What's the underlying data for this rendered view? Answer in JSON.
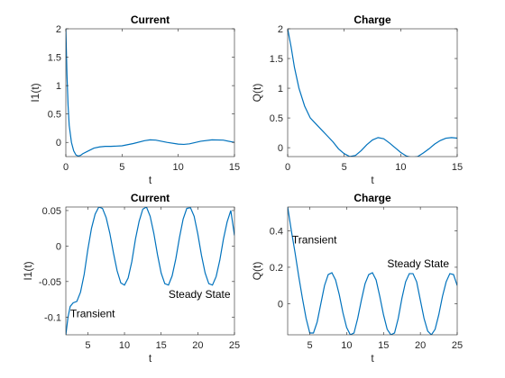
{
  "chart_data": [
    {
      "type": "line",
      "title": "Current",
      "xlabel": "t",
      "ylabel": "I1(t)",
      "xlim": [
        0,
        15
      ],
      "ylim": [
        -0.25,
        2
      ],
      "xticks": [
        0,
        5,
        10,
        15
      ],
      "xtick_labels": [
        "0",
        "5",
        "10",
        "15"
      ],
      "yticks": [
        0,
        0.5,
        1,
        1.5,
        2
      ],
      "ytick_labels": [
        "0",
        "0.5",
        "1",
        "1.5",
        "2"
      ],
      "color": "#0072BD",
      "series": [
        {
          "x": [
            0,
            0.1,
            0.2,
            0.3,
            0.5,
            0.7,
            0.9,
            1.1,
            1.3,
            1.5,
            2.0,
            2.5,
            3.0,
            3.5,
            4.0,
            5.0,
            6.0,
            7.0,
            7.5,
            8.0,
            9.0,
            10.0,
            10.5,
            11.0,
            12.0,
            13.0,
            14.0,
            15.0
          ],
          "y": [
            2.0,
            1.2,
            0.65,
            0.3,
            0.0,
            -0.15,
            -0.22,
            -0.24,
            -0.23,
            -0.2,
            -0.15,
            -0.1,
            -0.08,
            -0.07,
            -0.07,
            -0.06,
            -0.02,
            0.03,
            0.045,
            0.04,
            0.0,
            -0.03,
            -0.035,
            -0.025,
            0.02,
            0.045,
            0.04,
            0.0
          ]
        }
      ],
      "annotations": []
    },
    {
      "type": "line",
      "title": "Charge",
      "xlabel": "t",
      "ylabel": "Q(t)",
      "xlim": [
        0,
        15
      ],
      "ylim": [
        -0.15,
        2
      ],
      "xticks": [
        0,
        5,
        10,
        15
      ],
      "xtick_labels": [
        "0",
        "5",
        "10",
        "15"
      ],
      "yticks": [
        0,
        0.5,
        1,
        1.5,
        2
      ],
      "ytick_labels": [
        "0",
        "0.5",
        "1",
        "1.5",
        "2"
      ],
      "color": "#0072BD",
      "series": [
        {
          "x": [
            0,
            0.3,
            0.6,
            1.0,
            1.5,
            2.0,
            2.5,
            3.0,
            3.5,
            4.0,
            4.5,
            5.0,
            5.5,
            6.0,
            6.5,
            7.0,
            7.5,
            8.0,
            8.5,
            9.0,
            9.5,
            10.0,
            10.5,
            11.0,
            11.5,
            12.0,
            12.5,
            13.0,
            13.5,
            14.0,
            14.5,
            15.0
          ],
          "y": [
            2.0,
            1.7,
            1.35,
            1.0,
            0.7,
            0.5,
            0.4,
            0.3,
            0.2,
            0.1,
            -0.02,
            -0.1,
            -0.15,
            -0.13,
            -0.05,
            0.05,
            0.13,
            0.17,
            0.15,
            0.08,
            0.0,
            -0.08,
            -0.14,
            -0.165,
            -0.15,
            -0.09,
            -0.02,
            0.06,
            0.12,
            0.16,
            0.17,
            0.16
          ]
        }
      ],
      "annotations": []
    },
    {
      "type": "line",
      "title": "Current",
      "xlabel": "t",
      "ylabel": "I1(t)",
      "xlim": [
        2,
        25
      ],
      "ylim": [
        -0.125,
        0.055
      ],
      "xticks": [
        5,
        10,
        15,
        20,
        25
      ],
      "xtick_labels": [
        "5",
        "10",
        "15",
        "20",
        "25"
      ],
      "yticks": [
        -0.1,
        -0.05,
        0,
        0.05
      ],
      "ytick_labels": [
        "-0.1",
        "-0.05",
        "0",
        "0.05"
      ],
      "color": "#0072BD",
      "series": [
        {
          "x": [
            2.0,
            2.3,
            2.6,
            3.0,
            3.5,
            4.0,
            4.5,
            5.0,
            5.5,
            6.0,
            6.5,
            7.0,
            7.5,
            8.0,
            8.5,
            9.0,
            9.5,
            10.0,
            10.5,
            11.0,
            11.5,
            12.0,
            12.5,
            13.0,
            13.5,
            14.0,
            14.5,
            15.0,
            15.5,
            16.0,
            16.5,
            17.0,
            17.5,
            18.0,
            18.5,
            19.0,
            19.5,
            20.0,
            20.5,
            21.0,
            21.5,
            22.0,
            22.5,
            23.0,
            23.5,
            24.0,
            24.5,
            25.0
          ],
          "y": [
            -0.125,
            -0.1,
            -0.085,
            -0.08,
            -0.078,
            -0.065,
            -0.04,
            -0.005,
            0.025,
            0.045,
            0.055,
            0.053,
            0.04,
            0.018,
            -0.01,
            -0.035,
            -0.052,
            -0.055,
            -0.045,
            -0.022,
            0.01,
            0.035,
            0.052,
            0.055,
            0.042,
            0.018,
            -0.012,
            -0.038,
            -0.053,
            -0.055,
            -0.042,
            -0.018,
            0.012,
            0.038,
            0.053,
            0.054,
            0.042,
            0.017,
            -0.013,
            -0.038,
            -0.053,
            -0.055,
            -0.043,
            -0.02,
            0.01,
            0.034,
            0.05,
            0.015
          ]
        }
      ],
      "annotations": [
        {
          "text": "Transient",
          "x": 2.6,
          "y": -0.1
        },
        {
          "text": "Steady State",
          "x": 16.0,
          "y": -0.073
        }
      ]
    },
    {
      "type": "line",
      "title": "Charge",
      "xlabel": "t",
      "ylabel": "Q(t)",
      "xlim": [
        2,
        25
      ],
      "ylim": [
        -0.17,
        0.53
      ],
      "xticks": [
        5,
        10,
        15,
        20,
        25
      ],
      "xtick_labels": [
        "5",
        "10",
        "15",
        "20",
        "25"
      ],
      "yticks": [
        0,
        0.2,
        0.4
      ],
      "ytick_labels": [
        "0",
        "0.2",
        "0.4"
      ],
      "color": "#0072BD",
      "series": [
        {
          "x": [
            2.0,
            2.5,
            3.0,
            3.5,
            4.0,
            4.5,
            5.0,
            5.5,
            6.0,
            6.5,
            7.0,
            7.5,
            8.0,
            8.5,
            9.0,
            9.5,
            10.0,
            10.5,
            11.0,
            11.5,
            12.0,
            12.5,
            13.0,
            13.5,
            14.0,
            14.5,
            15.0,
            15.5,
            16.0,
            16.5,
            17.0,
            17.5,
            18.0,
            18.5,
            19.0,
            19.5,
            20.0,
            20.5,
            21.0,
            21.5,
            22.0,
            22.5,
            23.0,
            23.5,
            24.0,
            24.5,
            25.0
          ],
          "y": [
            0.53,
            0.4,
            0.28,
            0.15,
            0.03,
            -0.08,
            -0.16,
            -0.16,
            -0.1,
            0.0,
            0.1,
            0.16,
            0.17,
            0.13,
            0.05,
            -0.05,
            -0.13,
            -0.17,
            -0.16,
            -0.08,
            0.02,
            0.11,
            0.16,
            0.17,
            0.13,
            0.04,
            -0.06,
            -0.14,
            -0.17,
            -0.16,
            -0.08,
            0.03,
            0.12,
            0.165,
            0.165,
            0.12,
            0.02,
            -0.08,
            -0.15,
            -0.17,
            -0.14,
            -0.06,
            0.04,
            0.12,
            0.165,
            0.16,
            0.1
          ]
        }
      ],
      "annotations": [
        {
          "text": "Transient",
          "x": 2.6,
          "y": 0.33
        },
        {
          "text": "Steady State",
          "x": 15.5,
          "y": 0.2
        }
      ]
    }
  ]
}
